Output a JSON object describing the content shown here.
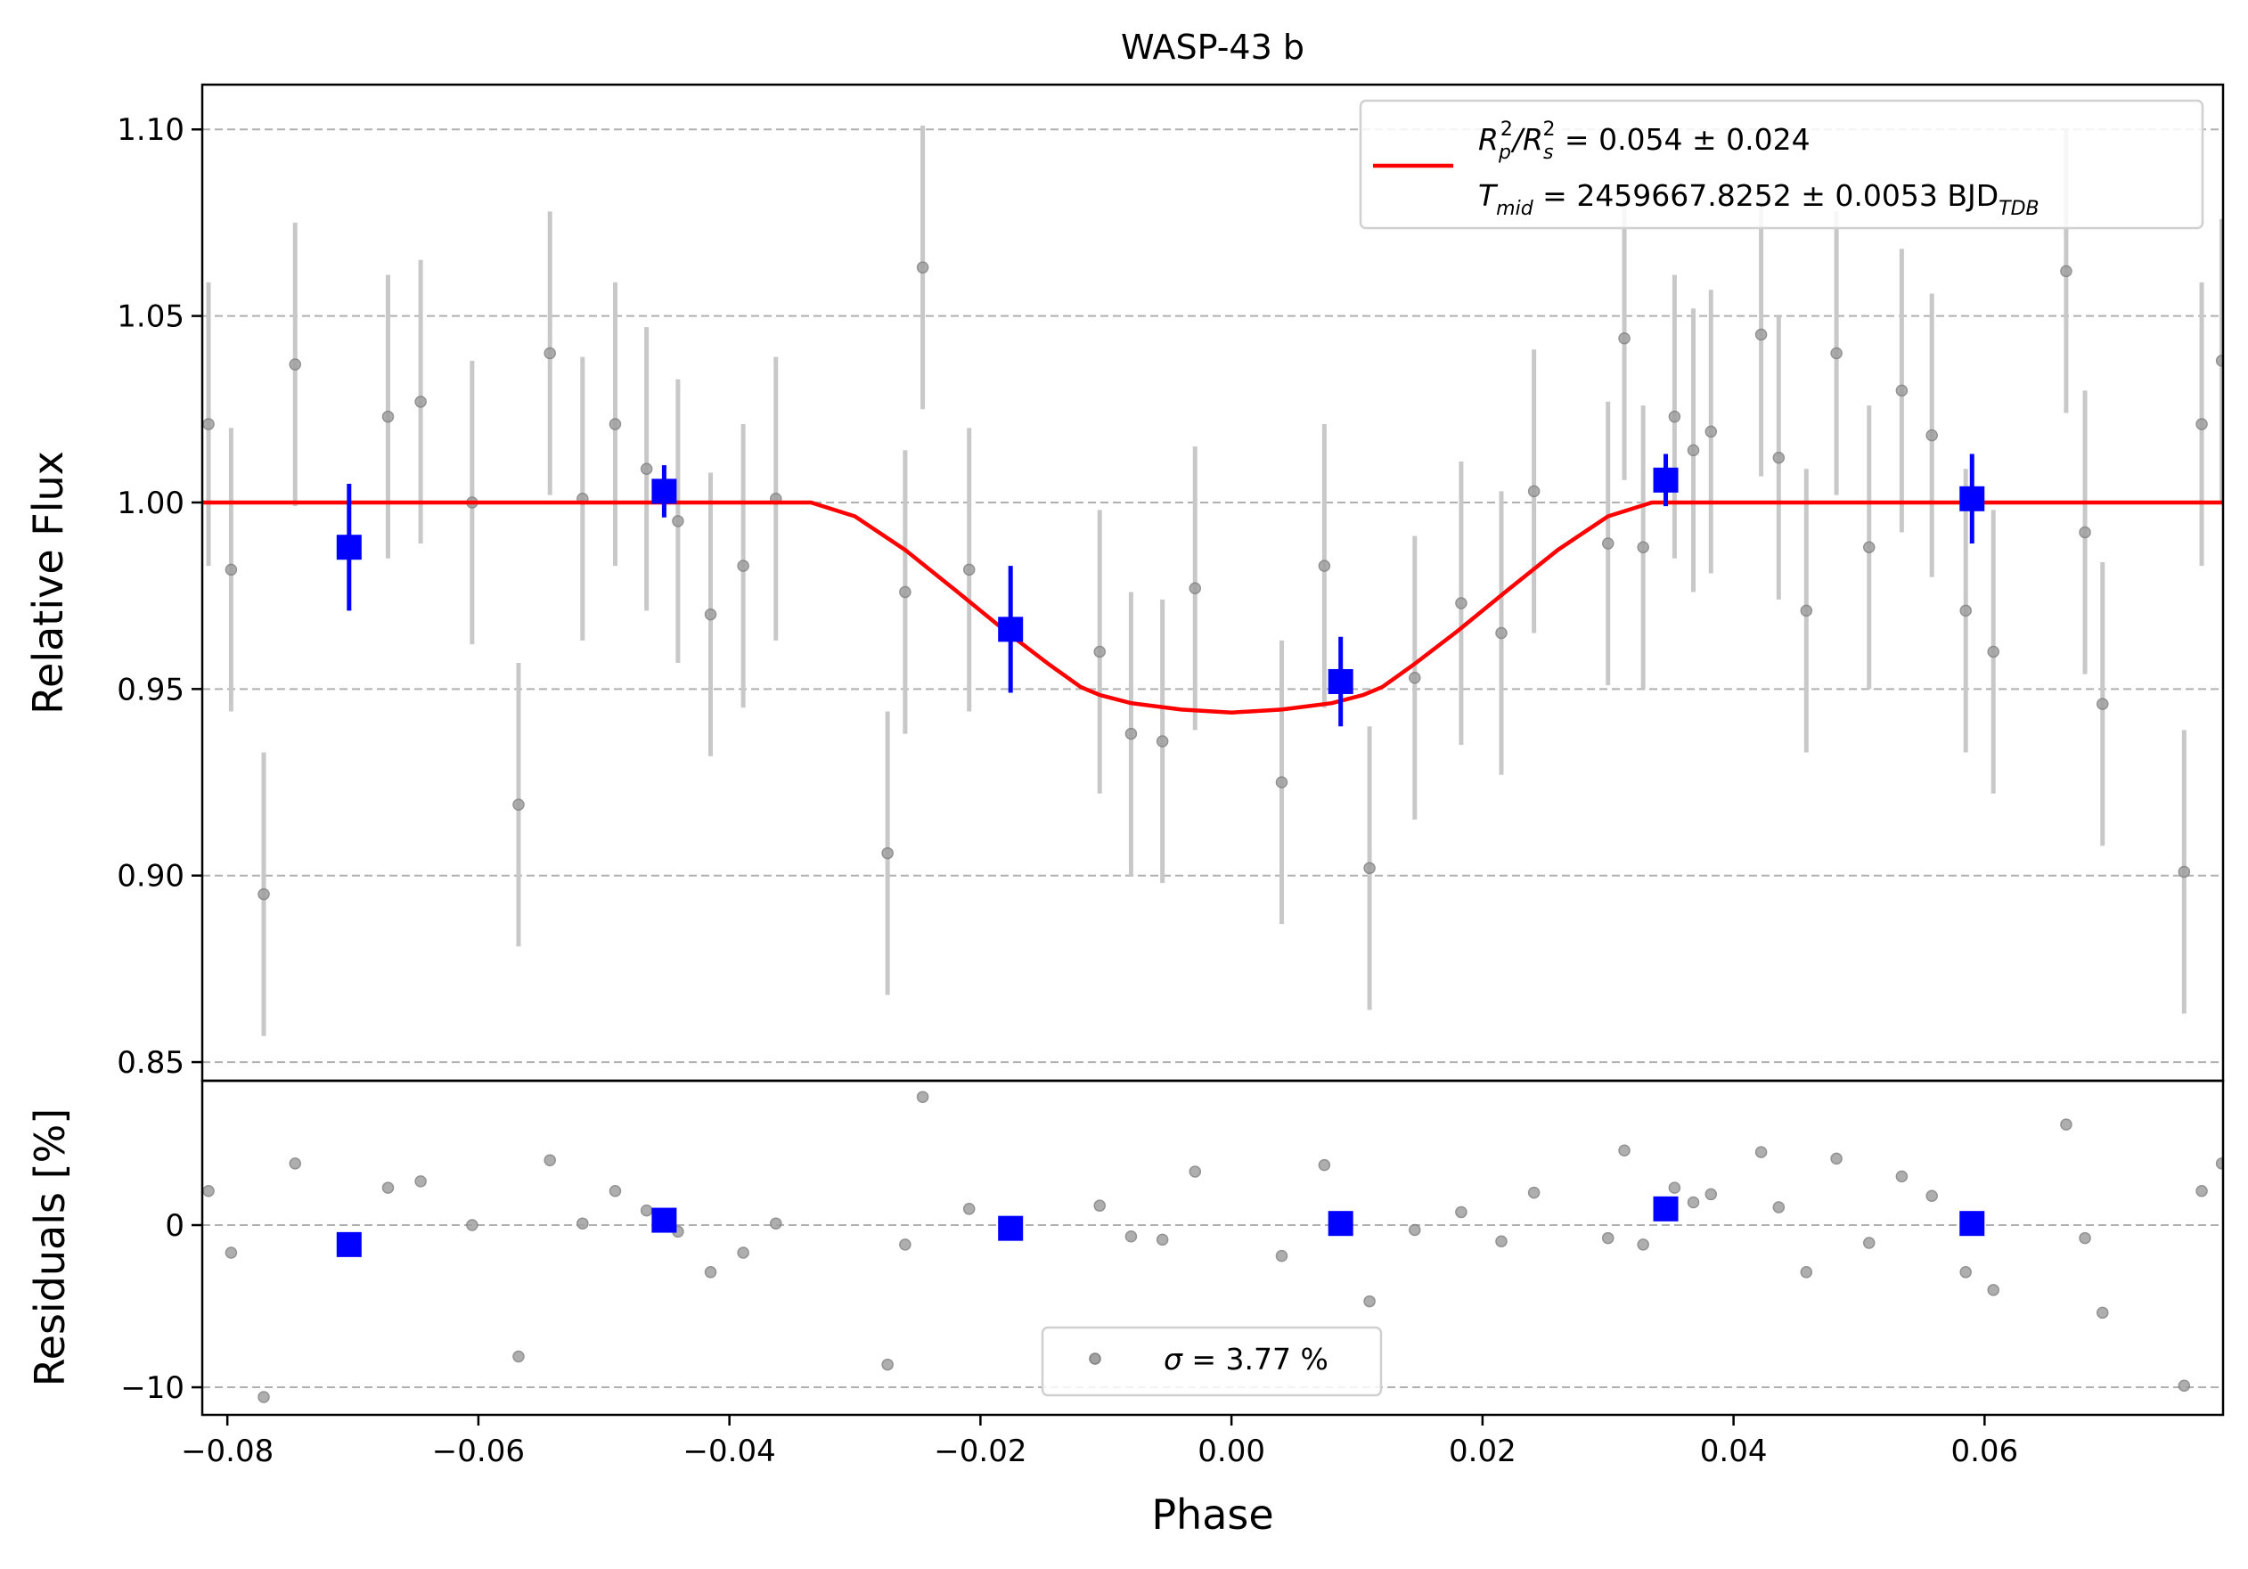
{
  "chart_data": [
    {
      "panel": "top",
      "type": "scatter",
      "title": "WASP-43 b",
      "xlabel": "",
      "ylabel": "Relative Flux",
      "xlim": [
        -0.082,
        0.079
      ],
      "ylim": [
        0.845,
        1.112
      ],
      "yticks": [
        0.85,
        0.9,
        0.95,
        1.0,
        1.05,
        1.1
      ],
      "ytick_labels": [
        "0.85",
        "0.90",
        "0.95",
        "1.00",
        "1.05",
        "1.10"
      ],
      "grid": "horizontal",
      "legend": {
        "placement": "top-right",
        "series_name": "model",
        "line1_var": "R",
        "line1_sub_a": "p",
        "line1_sup_a": "2",
        "line1_sep": "/R",
        "line1_sub_b": "s",
        "line1_sup_b": "2",
        "line1_rest": " = 0.054 ± 0.024",
        "line2_var": "T",
        "line2_sub": "mid",
        "line2_rest": " = 2459667.8252 ± 0.0053 BJD",
        "line2_unit_sub": "TDB"
      },
      "model": {
        "color": "#ff0000",
        "baseline": 1.0,
        "depth": 0.0563,
        "t_ingress_start": 0.0335,
        "t_full": 0.0105,
        "x": [
          -0.082,
          -0.0335,
          -0.03,
          -0.026,
          -0.022,
          -0.018,
          -0.0145,
          -0.012,
          -0.0105,
          -0.008,
          -0.004,
          0.0,
          0.004,
          0.008,
          0.0105,
          0.012,
          0.0145,
          0.018,
          0.022,
          0.026,
          0.03,
          0.0335,
          0.079
        ],
        "y": [
          1.0,
          1.0,
          0.9963,
          0.9873,
          0.9765,
          0.9655,
          0.9565,
          0.9505,
          0.9484,
          0.9462,
          0.9445,
          0.9437,
          0.9445,
          0.9462,
          0.9484,
          0.9505,
          0.9565,
          0.9655,
          0.9765,
          0.9873,
          0.9963,
          1.0,
          1.0
        ]
      },
      "raw_series": {
        "color": "#a0a0a0",
        "error_color": "#c8c8c8",
        "points": [
          {
            "x": -0.0815,
            "y": 1.021,
            "err": 0.038
          },
          {
            "x": -0.0797,
            "y": 0.982,
            "err": 0.038
          },
          {
            "x": -0.0771,
            "y": 0.895,
            "err": 0.038
          },
          {
            "x": -0.0746,
            "y": 1.037,
            "err": 0.038
          },
          {
            "x": -0.0672,
            "y": 1.023,
            "err": 0.038
          },
          {
            "x": -0.0646,
            "y": 1.027,
            "err": 0.038
          },
          {
            "x": -0.0605,
            "y": 1.0,
            "err": 0.038
          },
          {
            "x": -0.0568,
            "y": 0.919,
            "err": 0.038
          },
          {
            "x": -0.0543,
            "y": 1.04,
            "err": 0.038
          },
          {
            "x": -0.0517,
            "y": 1.001,
            "err": 0.038
          },
          {
            "x": -0.0491,
            "y": 1.021,
            "err": 0.038
          },
          {
            "x": -0.0466,
            "y": 1.009,
            "err": 0.038
          },
          {
            "x": -0.0441,
            "y": 0.995,
            "err": 0.038
          },
          {
            "x": -0.0415,
            "y": 0.97,
            "err": 0.038
          },
          {
            "x": -0.0389,
            "y": 0.983,
            "err": 0.038
          },
          {
            "x": -0.0363,
            "y": 1.001,
            "err": 0.038
          },
          {
            "x": -0.0274,
            "y": 0.906,
            "err": 0.038
          },
          {
            "x": -0.026,
            "y": 0.976,
            "err": 0.038
          },
          {
            "x": -0.0246,
            "y": 1.063,
            "err": 0.038
          },
          {
            "x": -0.0209,
            "y": 0.982,
            "err": 0.038
          },
          {
            "x": -0.0105,
            "y": 0.96,
            "err": 0.038
          },
          {
            "x": -0.008,
            "y": 0.938,
            "err": 0.038
          },
          {
            "x": -0.0055,
            "y": 0.936,
            "err": 0.038
          },
          {
            "x": -0.0029,
            "y": 0.977,
            "err": 0.038
          },
          {
            "x": 0.004,
            "y": 0.925,
            "err": 0.038
          },
          {
            "x": 0.0074,
            "y": 0.983,
            "err": 0.038
          },
          {
            "x": 0.011,
            "y": 0.902,
            "err": 0.038
          },
          {
            "x": 0.0146,
            "y": 0.953,
            "err": 0.038
          },
          {
            "x": 0.0183,
            "y": 0.973,
            "err": 0.038
          },
          {
            "x": 0.0215,
            "y": 0.965,
            "err": 0.038
          },
          {
            "x": 0.0241,
            "y": 1.003,
            "err": 0.038
          },
          {
            "x": 0.03,
            "y": 0.989,
            "err": 0.038
          },
          {
            "x": 0.0313,
            "y": 1.044,
            "err": 0.038
          },
          {
            "x": 0.0328,
            "y": 0.988,
            "err": 0.038
          },
          {
            "x": 0.0353,
            "y": 1.023,
            "err": 0.038
          },
          {
            "x": 0.0368,
            "y": 1.014,
            "err": 0.038
          },
          {
            "x": 0.0382,
            "y": 1.019,
            "err": 0.038
          },
          {
            "x": 0.0422,
            "y": 1.045,
            "err": 0.038
          },
          {
            "x": 0.0436,
            "y": 1.012,
            "err": 0.038
          },
          {
            "x": 0.0458,
            "y": 0.971,
            "err": 0.038
          },
          {
            "x": 0.0482,
            "y": 1.04,
            "err": 0.038
          },
          {
            "x": 0.0508,
            "y": 0.988,
            "err": 0.038
          },
          {
            "x": 0.0534,
            "y": 1.03,
            "err": 0.038
          },
          {
            "x": 0.0558,
            "y": 1.018,
            "err": 0.038
          },
          {
            "x": 0.0585,
            "y": 0.971,
            "err": 0.038
          },
          {
            "x": 0.0607,
            "y": 0.96,
            "err": 0.038
          },
          {
            "x": 0.0665,
            "y": 1.062,
            "err": 0.038
          },
          {
            "x": 0.068,
            "y": 0.992,
            "err": 0.038
          },
          {
            "x": 0.0694,
            "y": 0.946,
            "err": 0.038
          },
          {
            "x": 0.0759,
            "y": 0.901,
            "err": 0.038
          },
          {
            "x": 0.0773,
            "y": 1.021,
            "err": 0.038
          },
          {
            "x": 0.0789,
            "y": 1.038,
            "err": 0.038
          }
        ]
      },
      "binned_series": {
        "color": "#0000ff",
        "points": [
          {
            "x": -0.0703,
            "y": 0.988,
            "err": 0.017
          },
          {
            "x": -0.0452,
            "y": 1.003,
            "err": 0.007
          },
          {
            "x": -0.0176,
            "y": 0.966,
            "err": 0.017
          },
          {
            "x": 0.0087,
            "y": 0.952,
            "err": 0.012
          },
          {
            "x": 0.0346,
            "y": 1.006,
            "err": 0.007
          },
          {
            "x": 0.059,
            "y": 1.001,
            "err": 0.012
          }
        ]
      }
    },
    {
      "panel": "bottom",
      "type": "scatter",
      "xlabel": "Phase",
      "ylabel": "Residuals [%]",
      "xlim": [
        -0.082,
        0.079
      ],
      "ylim": [
        -11.7,
        8.9
      ],
      "xticks": [
        -0.08,
        -0.06,
        -0.04,
        -0.02,
        0.0,
        0.02,
        0.04,
        0.06
      ],
      "xtick_labels": [
        "−0.08",
        "−0.06",
        "−0.04",
        "−0.02",
        "0.00",
        "0.02",
        "0.04",
        "0.06"
      ],
      "yticks": [
        -10,
        0
      ],
      "ytick_labels": [
        "−10",
        "0"
      ],
      "grid": "horizontal",
      "legend": {
        "placement": "bottom-center",
        "series_name": "residuals",
        "label_var": "σ",
        "label_rest": " = 3.77 %"
      },
      "raw_series": {
        "color": "#a0a0a0",
        "points": [
          {
            "x": -0.0815,
            "y": 2.1
          },
          {
            "x": -0.0797,
            "y": -1.7
          },
          {
            "x": -0.0771,
            "y": -10.6
          },
          {
            "x": -0.0746,
            "y": 3.8
          },
          {
            "x": -0.0672,
            "y": 2.3
          },
          {
            "x": -0.0646,
            "y": 2.7
          },
          {
            "x": -0.0605,
            "y": 0.0
          },
          {
            "x": -0.0568,
            "y": -8.1
          },
          {
            "x": -0.0543,
            "y": 4.0
          },
          {
            "x": -0.0517,
            "y": 0.1
          },
          {
            "x": -0.0491,
            "y": 2.1
          },
          {
            "x": -0.0466,
            "y": 0.9
          },
          {
            "x": -0.0441,
            "y": -0.4
          },
          {
            "x": -0.0415,
            "y": -2.9
          },
          {
            "x": -0.0389,
            "y": -1.7
          },
          {
            "x": -0.0363,
            "y": 0.1
          },
          {
            "x": -0.0274,
            "y": -8.6
          },
          {
            "x": -0.026,
            "y": -1.2
          },
          {
            "x": -0.0246,
            "y": 7.9
          },
          {
            "x": -0.0209,
            "y": 1.0
          },
          {
            "x": -0.0105,
            "y": 1.2
          },
          {
            "x": -0.008,
            "y": -0.7
          },
          {
            "x": -0.0055,
            "y": -0.9
          },
          {
            "x": -0.0029,
            "y": 3.3
          },
          {
            "x": 0.004,
            "y": -1.9
          },
          {
            "x": 0.0074,
            "y": 3.7
          },
          {
            "x": 0.011,
            "y": -4.7
          },
          {
            "x": 0.0146,
            "y": -0.3
          },
          {
            "x": 0.0183,
            "y": 0.8
          },
          {
            "x": 0.0215,
            "y": -1.0
          },
          {
            "x": 0.0241,
            "y": 2.0
          },
          {
            "x": 0.03,
            "y": -0.8
          },
          {
            "x": 0.0313,
            "y": 4.6
          },
          {
            "x": 0.0328,
            "y": -1.2
          },
          {
            "x": 0.0353,
            "y": 2.3
          },
          {
            "x": 0.0368,
            "y": 1.4
          },
          {
            "x": 0.0382,
            "y": 1.9
          },
          {
            "x": 0.0422,
            "y": 4.5
          },
          {
            "x": 0.0436,
            "y": 1.1
          },
          {
            "x": 0.0458,
            "y": -2.9
          },
          {
            "x": 0.0482,
            "y": 4.1
          },
          {
            "x": 0.0508,
            "y": -1.1
          },
          {
            "x": 0.0534,
            "y": 3.0
          },
          {
            "x": 0.0558,
            "y": 1.8
          },
          {
            "x": 0.0585,
            "y": -2.9
          },
          {
            "x": 0.0607,
            "y": -4.0
          },
          {
            "x": 0.0665,
            "y": 6.2
          },
          {
            "x": 0.068,
            "y": -0.8
          },
          {
            "x": 0.0694,
            "y": -5.4
          },
          {
            "x": 0.0759,
            "y": -9.9
          },
          {
            "x": 0.0773,
            "y": 2.1
          },
          {
            "x": 0.0789,
            "y": 3.8
          }
        ]
      },
      "binned_series": {
        "color": "#0000ff",
        "points": [
          {
            "x": -0.0703,
            "y": -1.2
          },
          {
            "x": -0.0452,
            "y": 0.3
          },
          {
            "x": -0.0176,
            "y": -0.2
          },
          {
            "x": 0.0087,
            "y": 0.1
          },
          {
            "x": 0.0346,
            "y": 1.0
          },
          {
            "x": 0.059,
            "y": 0.1
          }
        ]
      }
    }
  ]
}
